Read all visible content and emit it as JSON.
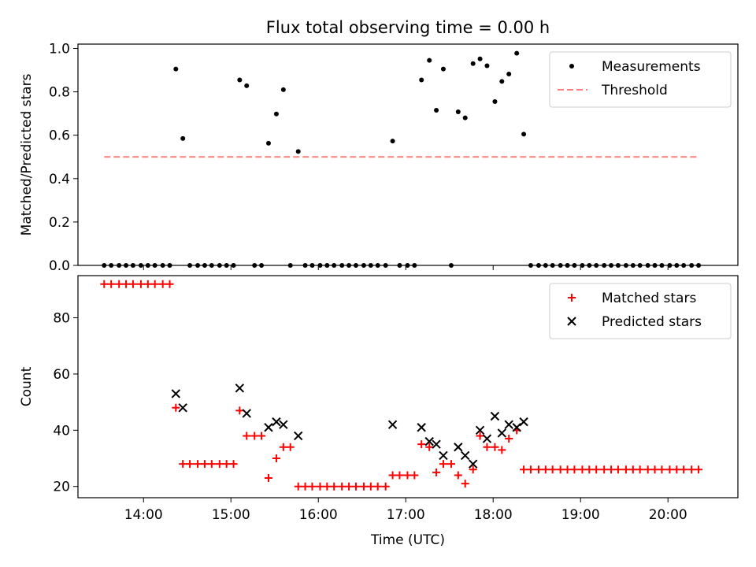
{
  "chart_data": [
    {
      "type": "scatter",
      "title": "Flux total observing time = 0.00 h",
      "xlabel": "",
      "ylabel": "Matched/Predicted stars",
      "ylim": [
        0,
        1.02
      ],
      "yticks": [
        "0.0",
        "0.2",
        "0.4",
        "0.6",
        "0.8",
        "1.0"
      ],
      "legend_position": "upper right",
      "series": [
        {
          "name": "Measurements",
          "marker": "dot",
          "color": "#000000",
          "points": [
            [
              13.55,
              0
            ],
            [
              13.63,
              0
            ],
            [
              13.72,
              0
            ],
            [
              13.8,
              0
            ],
            [
              13.88,
              0
            ],
            [
              13.97,
              0
            ],
            [
              14.05,
              0
            ],
            [
              14.13,
              0
            ],
            [
              14.22,
              0
            ],
            [
              14.3,
              0
            ],
            [
              14.37,
              0.905
            ],
            [
              14.45,
              0.585
            ],
            [
              14.53,
              0
            ],
            [
              14.62,
              0
            ],
            [
              14.7,
              0
            ],
            [
              14.78,
              0
            ],
            [
              14.87,
              0
            ],
            [
              14.95,
              0
            ],
            [
              15.03,
              0
            ],
            [
              15.1,
              0.855
            ],
            [
              15.18,
              0.828
            ],
            [
              15.27,
              0
            ],
            [
              15.35,
              0
            ],
            [
              15.43,
              0.563
            ],
            [
              15.52,
              0.698
            ],
            [
              15.6,
              0.81
            ],
            [
              15.68,
              0
            ],
            [
              15.77,
              0.525
            ],
            [
              15.85,
              0
            ],
            [
              15.93,
              0
            ],
            [
              16.02,
              0
            ],
            [
              16.1,
              0
            ],
            [
              16.18,
              0
            ],
            [
              16.27,
              0
            ],
            [
              16.35,
              0
            ],
            [
              16.43,
              0
            ],
            [
              16.52,
              0
            ],
            [
              16.6,
              0
            ],
            [
              16.68,
              0
            ],
            [
              16.77,
              0
            ],
            [
              16.85,
              0.573
            ],
            [
              16.93,
              0
            ],
            [
              17.02,
              0
            ],
            [
              17.1,
              0
            ],
            [
              17.18,
              0.855
            ],
            [
              17.27,
              0.945
            ],
            [
              17.35,
              0.715
            ],
            [
              17.43,
              0.905
            ],
            [
              17.52,
              0
            ],
            [
              17.6,
              0.708
            ],
            [
              17.68,
              0.68
            ],
            [
              17.77,
              0.93
            ],
            [
              17.85,
              0.952
            ],
            [
              17.93,
              0.92
            ],
            [
              18.02,
              0.755
            ],
            [
              18.1,
              0.848
            ],
            [
              18.18,
              0.882
            ],
            [
              18.27,
              0.978
            ],
            [
              18.35,
              0.605
            ],
            [
              18.43,
              0
            ],
            [
              18.52,
              0
            ],
            [
              18.6,
              0
            ],
            [
              18.68,
              0
            ],
            [
              18.77,
              0
            ],
            [
              18.85,
              0
            ],
            [
              18.93,
              0
            ],
            [
              19.02,
              0
            ],
            [
              19.1,
              0
            ],
            [
              19.18,
              0
            ],
            [
              19.27,
              0
            ],
            [
              19.35,
              0
            ],
            [
              19.43,
              0
            ],
            [
              19.52,
              0
            ],
            [
              19.6,
              0
            ],
            [
              19.68,
              0
            ],
            [
              19.77,
              0
            ],
            [
              19.85,
              0
            ],
            [
              19.93,
              0
            ],
            [
              20.02,
              0
            ],
            [
              20.1,
              0
            ],
            [
              20.18,
              0
            ],
            [
              20.27,
              0
            ],
            [
              20.35,
              0
            ]
          ]
        },
        {
          "name": "Threshold",
          "marker": "dashed-line",
          "color": "#ff7f7f",
          "points": [
            [
              13.55,
              0.5
            ],
            [
              20.35,
              0.5
            ]
          ]
        }
      ]
    },
    {
      "type": "scatter",
      "title": "",
      "xlabel": "Time (UTC)",
      "ylabel": "Count",
      "ylim": [
        16,
        95
      ],
      "yticks": [
        "20",
        "40",
        "60",
        "80"
      ],
      "xticks": [
        "14:00",
        "15:00",
        "16:00",
        "17:00",
        "18:00",
        "19:00",
        "20:00"
      ],
      "legend_position": "upper right",
      "series": [
        {
          "name": "Matched stars",
          "marker": "plus",
          "color": "#ff0000",
          "points": [
            [
              13.55,
              92
            ],
            [
              13.63,
              92
            ],
            [
              13.72,
              92
            ],
            [
              13.8,
              92
            ],
            [
              13.88,
              92
            ],
            [
              13.97,
              92
            ],
            [
              14.05,
              92
            ],
            [
              14.13,
              92
            ],
            [
              14.22,
              92
            ],
            [
              14.3,
              92
            ],
            [
              14.37,
              48
            ],
            [
              14.45,
              28
            ],
            [
              14.53,
              28
            ],
            [
              14.62,
              28
            ],
            [
              14.7,
              28
            ],
            [
              14.78,
              28
            ],
            [
              14.87,
              28
            ],
            [
              14.95,
              28
            ],
            [
              15.03,
              28
            ],
            [
              15.1,
              47
            ],
            [
              15.18,
              38
            ],
            [
              15.27,
              38
            ],
            [
              15.35,
              38
            ],
            [
              15.43,
              23
            ],
            [
              15.52,
              30
            ],
            [
              15.6,
              34
            ],
            [
              15.68,
              34
            ],
            [
              15.77,
              20
            ],
            [
              15.85,
              20
            ],
            [
              15.93,
              20
            ],
            [
              16.02,
              20
            ],
            [
              16.1,
              20
            ],
            [
              16.18,
              20
            ],
            [
              16.27,
              20
            ],
            [
              16.35,
              20
            ],
            [
              16.43,
              20
            ],
            [
              16.52,
              20
            ],
            [
              16.6,
              20
            ],
            [
              16.68,
              20
            ],
            [
              16.77,
              20
            ],
            [
              16.85,
              24
            ],
            [
              16.93,
              24
            ],
            [
              17.02,
              24
            ],
            [
              17.1,
              24
            ],
            [
              17.18,
              35
            ],
            [
              17.27,
              34
            ],
            [
              17.35,
              25
            ],
            [
              17.43,
              28
            ],
            [
              17.52,
              28
            ],
            [
              17.6,
              24
            ],
            [
              17.68,
              21
            ],
            [
              17.77,
              26
            ],
            [
              17.85,
              38
            ],
            [
              17.93,
              34
            ],
            [
              18.02,
              34
            ],
            [
              18.1,
              33
            ],
            [
              18.18,
              37
            ],
            [
              18.27,
              40
            ],
            [
              18.35,
              26
            ],
            [
              18.43,
              26
            ],
            [
              18.52,
              26
            ],
            [
              18.6,
              26
            ],
            [
              18.68,
              26
            ],
            [
              18.77,
              26
            ],
            [
              18.85,
              26
            ],
            [
              18.93,
              26
            ],
            [
              19.02,
              26
            ],
            [
              19.1,
              26
            ],
            [
              19.18,
              26
            ],
            [
              19.27,
              26
            ],
            [
              19.35,
              26
            ],
            [
              19.43,
              26
            ],
            [
              19.52,
              26
            ],
            [
              19.6,
              26
            ],
            [
              19.68,
              26
            ],
            [
              19.77,
              26
            ],
            [
              19.85,
              26
            ],
            [
              19.93,
              26
            ],
            [
              20.02,
              26
            ],
            [
              20.1,
              26
            ],
            [
              20.18,
              26
            ],
            [
              20.27,
              26
            ],
            [
              20.35,
              26
            ]
          ]
        },
        {
          "name": "Predicted stars",
          "marker": "x",
          "color": "#000000",
          "points": [
            [
              14.37,
              53
            ],
            [
              14.45,
              48
            ],
            [
              15.1,
              55
            ],
            [
              15.18,
              46
            ],
            [
              15.43,
              41
            ],
            [
              15.52,
              43
            ],
            [
              15.6,
              42
            ],
            [
              15.77,
              38
            ],
            [
              16.85,
              42
            ],
            [
              17.18,
              41
            ],
            [
              17.27,
              36
            ],
            [
              17.35,
              35
            ],
            [
              17.43,
              31
            ],
            [
              17.6,
              34
            ],
            [
              17.68,
              31
            ],
            [
              17.77,
              28
            ],
            [
              17.85,
              40
            ],
            [
              17.93,
              37
            ],
            [
              18.02,
              45
            ],
            [
              18.1,
              39
            ],
            [
              18.18,
              42
            ],
            [
              18.27,
              41
            ],
            [
              18.35,
              43
            ]
          ]
        }
      ]
    }
  ]
}
